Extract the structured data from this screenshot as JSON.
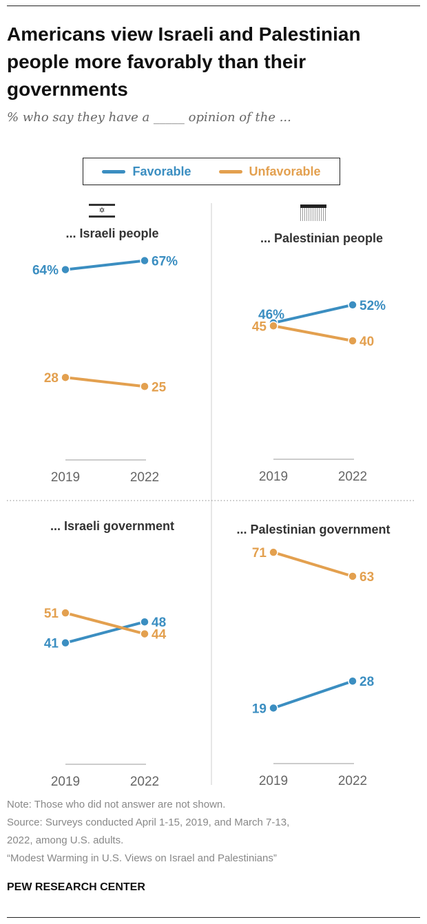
{
  "title": "Americans view Israeli and Palestinian people more favorably than their governments",
  "subtitle": "% who say they have a _____ opinion of the ...",
  "legend": {
    "favorable": "Favorable",
    "unfavorable": "Unfavorable"
  },
  "colors": {
    "favorable": "#3b8ec1",
    "unfavorable": "#e3a04f"
  },
  "icons": {
    "israel": "israeli-flag-icon",
    "palestine": "palestinian-flag-icon"
  },
  "chart_data": [
    {
      "type": "line",
      "title": "... Israeli people",
      "categories": [
        "2019",
        "2022"
      ],
      "series": [
        {
          "name": "Favorable",
          "values": [
            64,
            67
          ],
          "labels": [
            "64%",
            "67%"
          ]
        },
        {
          "name": "Unfavorable",
          "values": [
            28,
            25
          ],
          "labels": [
            "28",
            "25"
          ]
        }
      ]
    },
    {
      "type": "line",
      "title": "... Palestinian people",
      "categories": [
        "2019",
        "2022"
      ],
      "series": [
        {
          "name": "Favorable",
          "values": [
            46,
            52
          ],
          "labels": [
            "46%",
            "52%"
          ]
        },
        {
          "name": "Unfavorable",
          "values": [
            45,
            40
          ],
          "labels": [
            "45",
            "40"
          ]
        }
      ]
    },
    {
      "type": "line",
      "title": "... Israeli government",
      "categories": [
        "2019",
        "2022"
      ],
      "series": [
        {
          "name": "Favorable",
          "values": [
            41,
            48
          ],
          "labels": [
            "41",
            "48"
          ]
        },
        {
          "name": "Unfavorable",
          "values": [
            51,
            44
          ],
          "labels": [
            "51",
            "44"
          ]
        }
      ]
    },
    {
      "type": "line",
      "title": "... Palestinian government",
      "categories": [
        "2019",
        "2022"
      ],
      "series": [
        {
          "name": "Favorable",
          "values": [
            19,
            28
          ],
          "labels": [
            "19",
            "28"
          ]
        },
        {
          "name": "Unfavorable",
          "values": [
            71,
            63
          ],
          "labels": [
            "71",
            "63"
          ]
        }
      ]
    }
  ],
  "notes": [
    "Note: Those who did not answer are not shown.",
    "Source: Surveys conducted April 1-15, 2019, and March 7-13,",
    "2022, among U.S. adults.",
    "“Modest Warming in U.S. Views on Israel and Palestinians”"
  ],
  "brand": "PEW RESEARCH CENTER"
}
